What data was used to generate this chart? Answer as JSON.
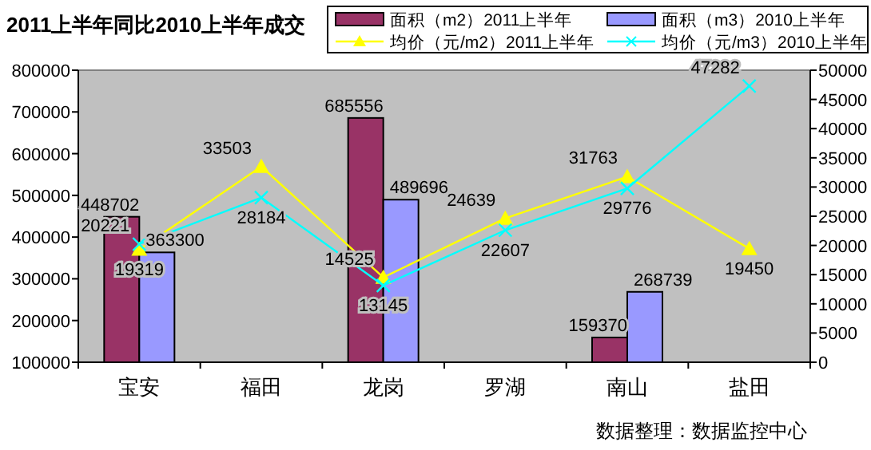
{
  "chart_data": {
    "type": "bar",
    "title": "2011上半年同比2010上半年成交",
    "categories": [
      "宝安",
      "福田",
      "龙岗",
      "罗湖",
      "南山",
      "盐田"
    ],
    "series": [
      {
        "name": "面积（m2）2011上半年",
        "color": "#993366",
        "values": [
          448702,
          null,
          685556,
          null,
          159370,
          null
        ]
      },
      {
        "name": "面积（m3）2010上半年",
        "color": "#9999ff",
        "values": [
          363300,
          null,
          489696,
          null,
          268739,
          null
        ]
      },
      {
        "name": "均价（元/m2）2011上半年",
        "type": "line",
        "axis": "y2",
        "marker": "triangle",
        "color": "#ffff00",
        "values": [
          19319,
          33503,
          14525,
          24639,
          31763,
          19450
        ]
      },
      {
        "name": "均价（元/m3）2010上半年",
        "type": "line",
        "axis": "y2",
        "marker": "cross",
        "color": "#00ffff",
        "values": [
          20221,
          28184,
          13145,
          22607,
          29776,
          47282
        ]
      }
    ],
    "ylim": [
      100000,
      800000
    ],
    "yticks": [
      100000,
      200000,
      300000,
      400000,
      500000,
      600000,
      700000,
      800000
    ],
    "y2lim": [
      0,
      50000
    ],
    "y2ticks": [
      0,
      5000,
      10000,
      15000,
      20000,
      25000,
      30000,
      35000,
      40000,
      45000,
      50000
    ],
    "data_labels": true,
    "legend": "top right",
    "grid": false,
    "annotations": [
      "数据整理：数据监控中心"
    ]
  }
}
